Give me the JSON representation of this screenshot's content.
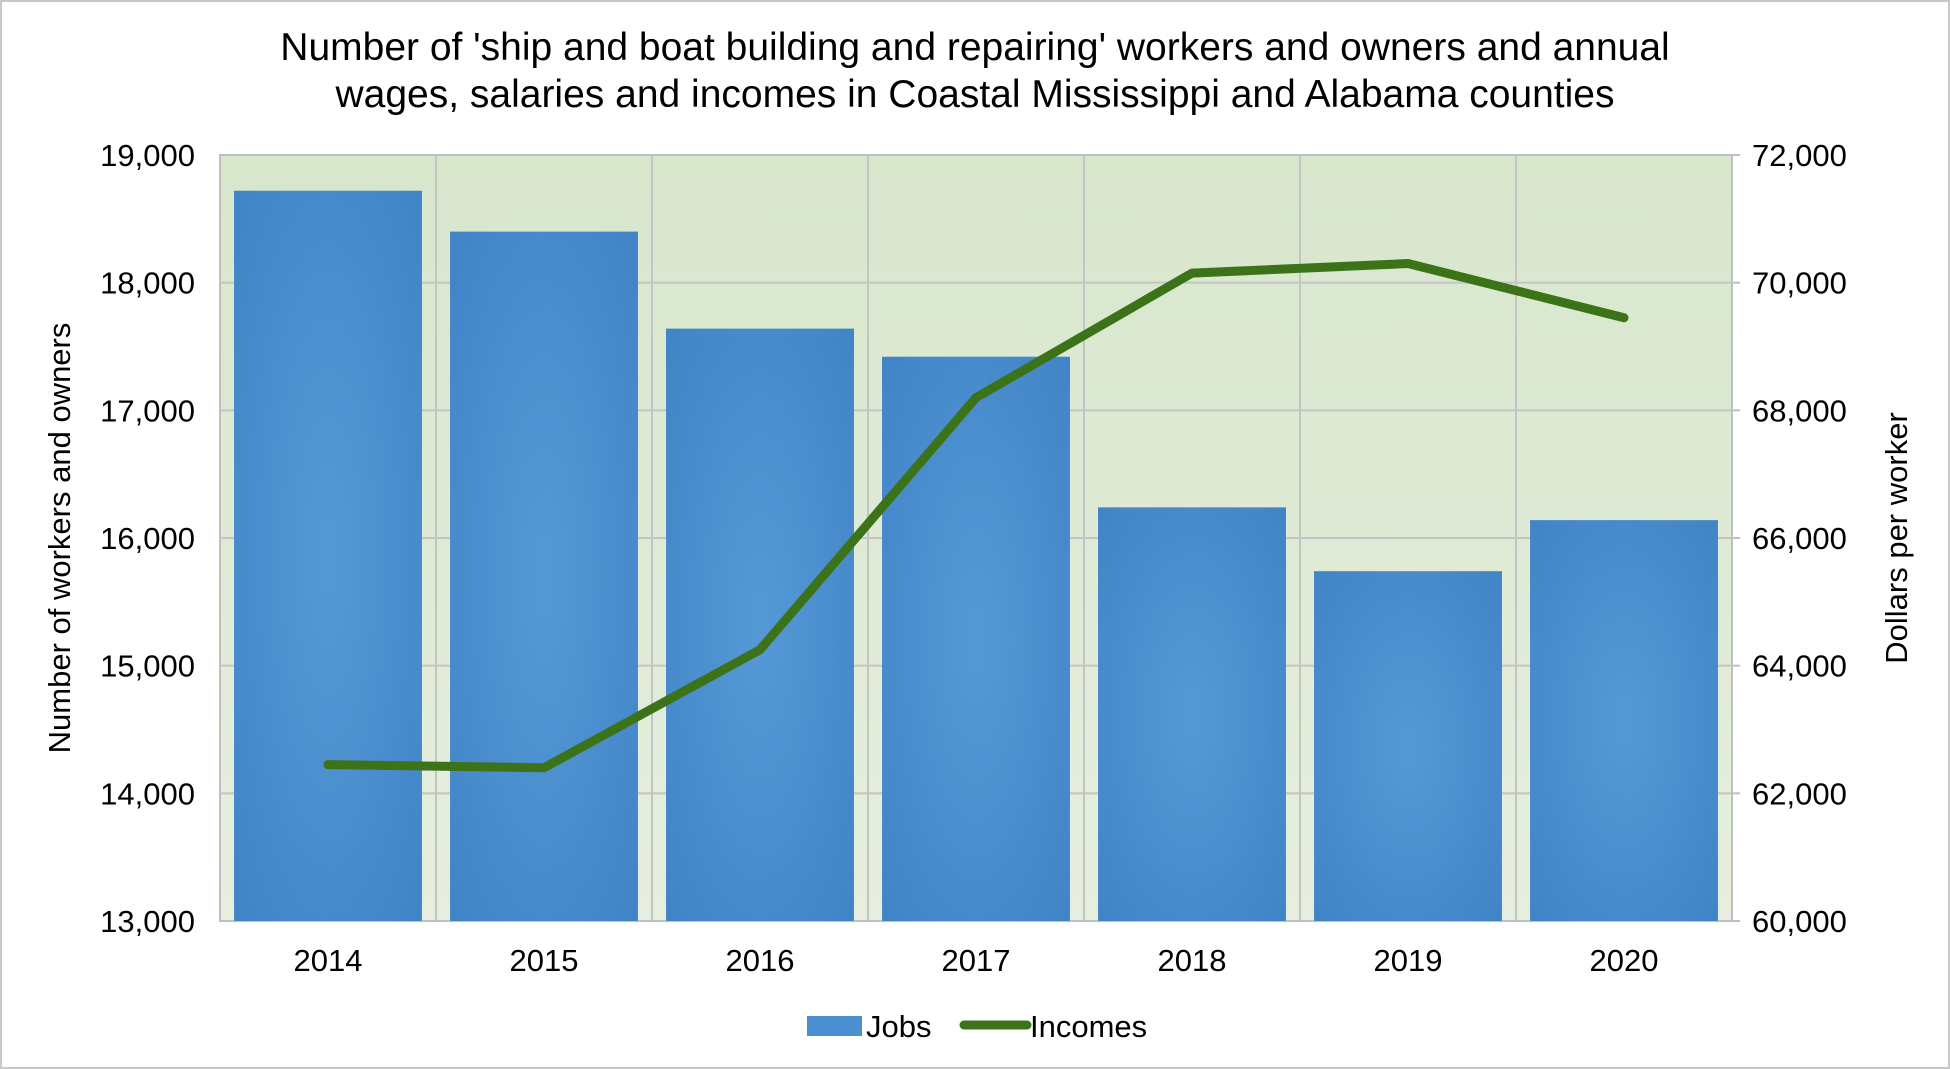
{
  "chart_data": {
    "type": "bar",
    "title_lines": [
      "Number of 'ship and boat building and repairing' workers and owners and annual",
      "wages, salaries and incomes in Coastal Mississippi and Alabama counties"
    ],
    "categories": [
      "2014",
      "2015",
      "2016",
      "2017",
      "2018",
      "2019",
      "2020"
    ],
    "series": [
      {
        "name": "Jobs",
        "type": "bar",
        "axis": "left",
        "color": "#4a8fd0",
        "values": [
          18720,
          18400,
          17640,
          17420,
          16240,
          15740,
          16140
        ]
      },
      {
        "name": "Incomes",
        "type": "line",
        "axis": "right",
        "color": "#3d7318",
        "values": [
          62450,
          62400,
          64250,
          68200,
          70150,
          70300,
          69450
        ]
      }
    ],
    "ylabel": "Number of workers and owners",
    "ylabel_right": "Dollars per worker",
    "ylim": [
      13000,
      19000
    ],
    "ylim_right": [
      60000,
      72000
    ],
    "yticks": [
      "13,000",
      "14,000",
      "15,000",
      "16,000",
      "17,000",
      "18,000",
      "19,000"
    ],
    "yticks_right": [
      "60,000",
      "62,000",
      "64,000",
      "66,000",
      "68,000",
      "70,000",
      "72,000"
    ],
    "grid": true,
    "legend_position": "bottom-center",
    "plot_background": "#dce8d0"
  }
}
